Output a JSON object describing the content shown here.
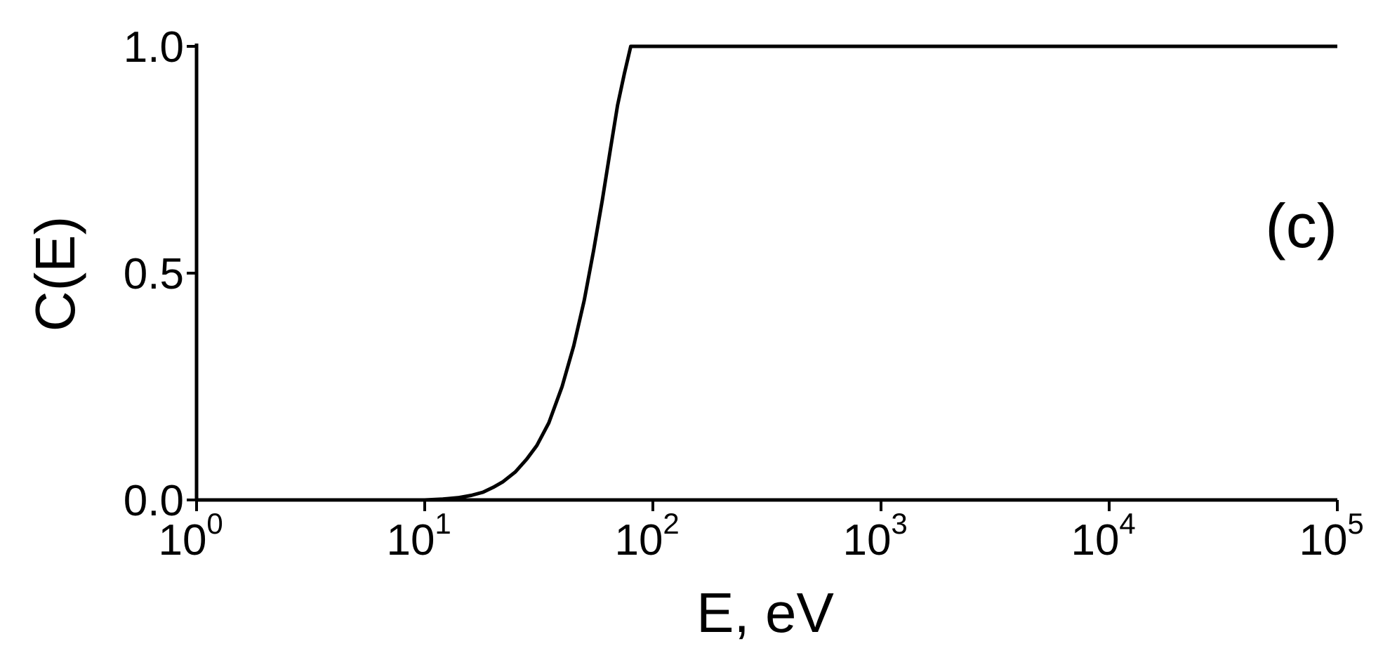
{
  "chart_data": {
    "type": "line",
    "panel_label": "(c)",
    "xlabel": "E, eV",
    "ylabel": "C(E)",
    "x_scale": "log",
    "xlim": [
      1,
      100000
    ],
    "ylim": [
      0,
      1
    ],
    "y_ticks": [
      "0.0",
      "0.5",
      "1.0"
    ],
    "x_ticks": [
      {
        "base": "10",
        "exp": "0"
      },
      {
        "base": "10",
        "exp": "1"
      },
      {
        "base": "10",
        "exp": "2"
      },
      {
        "base": "10",
        "exp": "3"
      },
      {
        "base": "10",
        "exp": "4"
      },
      {
        "base": "10",
        "exp": "5"
      }
    ],
    "grid": false,
    "series": [
      {
        "x": [
          1,
          10,
          12,
          14,
          16,
          18,
          20,
          22,
          25,
          28,
          31,
          35,
          40,
          45,
          50,
          55,
          60,
          65,
          70,
          75,
          80,
          100,
          1000,
          10000,
          100000
        ],
        "y": [
          0,
          0,
          0.002,
          0.005,
          0.01,
          0.017,
          0.028,
          0.04,
          0.062,
          0.09,
          0.12,
          0.17,
          0.25,
          0.34,
          0.44,
          0.55,
          0.66,
          0.77,
          0.87,
          0.94,
          1.0,
          1.0,
          1.0,
          1.0,
          1.0
        ]
      }
    ]
  }
}
